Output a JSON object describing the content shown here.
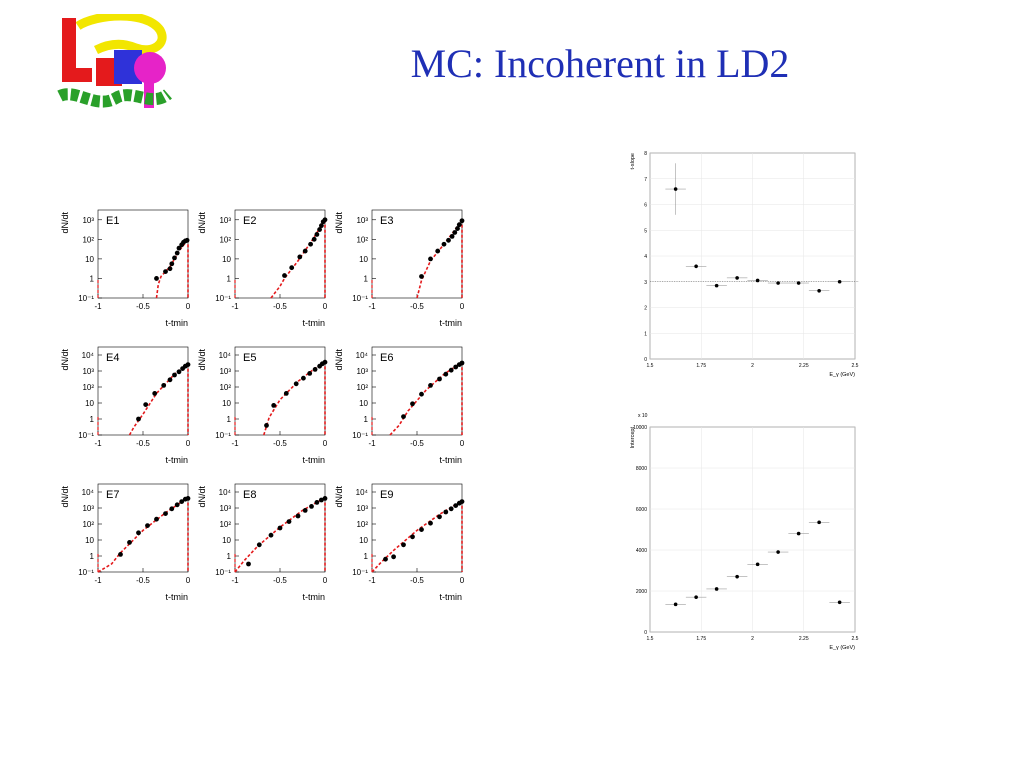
{
  "title": "MC: Incoherent in LD2",
  "colors": {
    "title": "#1f2fb5",
    "fit": "#e41a1c",
    "marker": "#000000"
  },
  "logo": {
    "text": "LEPS",
    "colors": [
      "#e41a1c",
      "#f2e600",
      "#2f32d9",
      "#2aa02a",
      "#e623c8"
    ]
  },
  "chart_data": [
    {
      "type": "scatter",
      "subplots": true,
      "layout": "3x3",
      "ylabel": "dN/dt",
      "xlabel": "t-tmin",
      "yscale": "log",
      "xlim": [
        -1,
        0
      ],
      "x_ticks": [
        "-1",
        "-0.5",
        "0"
      ],
      "fit_style": "red dashed",
      "panels": [
        {
          "label": "E1",
          "y_ticks": [
            "10⁻¹",
            "1",
            "10",
            "10²",
            "10³"
          ],
          "ylog": [
            -1,
            3.5
          ],
          "points": [
            [
              -0.35,
              0.0
            ],
            [
              -0.25,
              0.35
            ],
            [
              -0.2,
              0.5
            ],
            [
              -0.18,
              0.75
            ],
            [
              -0.15,
              1.05
            ],
            [
              -0.12,
              1.3
            ],
            [
              -0.1,
              1.55
            ],
            [
              -0.07,
              1.72
            ],
            [
              -0.05,
              1.85
            ],
            [
              -0.03,
              1.92
            ],
            [
              -0.01,
              1.95
            ]
          ],
          "fit": [
            [
              -0.35,
              -1.0
            ],
            [
              -0.33,
              -0.3
            ],
            [
              -0.3,
              0.1
            ],
            [
              -0.2,
              0.6
            ],
            [
              -0.1,
              1.4
            ],
            [
              0,
              2.0
            ]
          ]
        },
        {
          "label": "E2",
          "y_ticks": [
            "10⁻¹",
            "1",
            "10",
            "10²",
            "10³"
          ],
          "ylog": [
            -1,
            3.5
          ],
          "points": [
            [
              -0.45,
              0.15
            ],
            [
              -0.37,
              0.55
            ],
            [
              -0.28,
              1.1
            ],
            [
              -0.22,
              1.4
            ],
            [
              -0.16,
              1.75
            ],
            [
              -0.12,
              2.0
            ],
            [
              -0.09,
              2.25
            ],
            [
              -0.06,
              2.5
            ],
            [
              -0.04,
              2.7
            ],
            [
              -0.02,
              2.9
            ],
            [
              0,
              3.0
            ]
          ],
          "fit": [
            [
              -0.6,
              -1.0
            ],
            [
              -0.5,
              -0.4
            ],
            [
              -0.45,
              0.0
            ],
            [
              -0.3,
              0.9
            ],
            [
              -0.15,
              1.9
            ],
            [
              0,
              3.0
            ]
          ]
        },
        {
          "label": "E3",
          "y_ticks": [
            "10⁻¹",
            "1",
            "10",
            "10²",
            "10³"
          ],
          "ylog": [
            -1,
            3.5
          ],
          "points": [
            [
              -0.45,
              0.1
            ],
            [
              -0.35,
              1.0
            ],
            [
              -0.27,
              1.4
            ],
            [
              -0.2,
              1.75
            ],
            [
              -0.15,
              1.95
            ],
            [
              -0.11,
              2.15
            ],
            [
              -0.08,
              2.35
            ],
            [
              -0.05,
              2.55
            ],
            [
              -0.03,
              2.75
            ],
            [
              0,
              2.95
            ]
          ],
          "fit": [
            [
              -0.5,
              -1.0
            ],
            [
              -0.45,
              -0.1
            ],
            [
              -0.35,
              0.9
            ],
            [
              -0.2,
              1.75
            ],
            [
              -0.1,
              2.35
            ],
            [
              0,
              3.0
            ]
          ]
        },
        {
          "label": "E4",
          "y_ticks": [
            "10⁻¹",
            "1",
            "10",
            "10²",
            "10³",
            "10⁴"
          ],
          "ylog": [
            -1,
            4.5
          ],
          "points": [
            [
              -0.55,
              0.0
            ],
            [
              -0.47,
              0.9
            ],
            [
              -0.37,
              1.6
            ],
            [
              -0.27,
              2.1
            ],
            [
              -0.2,
              2.45
            ],
            [
              -0.15,
              2.75
            ],
            [
              -0.1,
              2.95
            ],
            [
              -0.06,
              3.15
            ],
            [
              -0.03,
              3.3
            ],
            [
              0,
              3.4
            ]
          ],
          "fit": [
            [
              -0.65,
              -1.0
            ],
            [
              -0.6,
              -0.5
            ],
            [
              -0.5,
              0.3
            ],
            [
              -0.35,
              1.6
            ],
            [
              -0.15,
              2.8
            ],
            [
              0,
              3.45
            ]
          ]
        },
        {
          "label": "E5",
          "y_ticks": [
            "10⁻¹",
            "1",
            "10",
            "10²",
            "10³",
            "10⁴"
          ],
          "ylog": [
            -1,
            4.5
          ],
          "points": [
            [
              -0.65,
              -0.4
            ],
            [
              -0.57,
              0.85
            ],
            [
              -0.43,
              1.6
            ],
            [
              -0.32,
              2.2
            ],
            [
              -0.24,
              2.55
            ],
            [
              -0.17,
              2.85
            ],
            [
              -0.11,
              3.1
            ],
            [
              -0.06,
              3.3
            ],
            [
              -0.03,
              3.45
            ],
            [
              0,
              3.55
            ]
          ],
          "fit": [
            [
              -0.68,
              -1.0
            ],
            [
              -0.62,
              0.1
            ],
            [
              -0.5,
              1.2
            ],
            [
              -0.3,
              2.35
            ],
            [
              -0.15,
              3.0
            ],
            [
              0,
              3.6
            ]
          ]
        },
        {
          "label": "E6",
          "y_ticks": [
            "10⁻¹",
            "1",
            "10",
            "10²",
            "10³",
            "10⁴"
          ],
          "ylog": [
            -1,
            4.5
          ],
          "points": [
            [
              -0.65,
              0.15
            ],
            [
              -0.55,
              0.95
            ],
            [
              -0.45,
              1.55
            ],
            [
              -0.35,
              2.1
            ],
            [
              -0.25,
              2.5
            ],
            [
              -0.18,
              2.8
            ],
            [
              -0.12,
              3.05
            ],
            [
              -0.07,
              3.25
            ],
            [
              -0.03,
              3.4
            ],
            [
              0,
              3.5
            ]
          ],
          "fit": [
            [
              -0.8,
              -1.0
            ],
            [
              -0.7,
              -0.4
            ],
            [
              -0.6,
              0.5
            ],
            [
              -0.4,
              1.8
            ],
            [
              -0.2,
              2.8
            ],
            [
              0,
              3.55
            ]
          ]
        },
        {
          "label": "E7",
          "y_ticks": [
            "10⁻¹",
            "1",
            "10",
            "10²",
            "10³",
            "10⁴"
          ],
          "ylog": [
            -1,
            4.5
          ],
          "points": [
            [
              -0.75,
              0.1
            ],
            [
              -0.65,
              0.85
            ],
            [
              -0.55,
              1.45
            ],
            [
              -0.45,
              1.9
            ],
            [
              -0.35,
              2.3
            ],
            [
              -0.25,
              2.65
            ],
            [
              -0.18,
              2.95
            ],
            [
              -0.12,
              3.2
            ],
            [
              -0.07,
              3.4
            ],
            [
              -0.03,
              3.55
            ],
            [
              0,
              3.6
            ]
          ],
          "fit": [
            [
              -1.0,
              -1.0
            ],
            [
              -0.85,
              -0.5
            ],
            [
              -0.75,
              0.2
            ],
            [
              -0.5,
              1.6
            ],
            [
              -0.25,
              2.7
            ],
            [
              0,
              3.65
            ]
          ]
        },
        {
          "label": "E8",
          "y_ticks": [
            "10⁻¹",
            "1",
            "10",
            "10²",
            "10³",
            "10⁴"
          ],
          "ylog": [
            -1,
            4.5
          ],
          "points": [
            [
              -0.85,
              -0.5
            ],
            [
              -0.73,
              0.7
            ],
            [
              -0.6,
              1.3
            ],
            [
              -0.5,
              1.75
            ],
            [
              -0.4,
              2.15
            ],
            [
              -0.3,
              2.5
            ],
            [
              -0.22,
              2.85
            ],
            [
              -0.15,
              3.1
            ],
            [
              -0.09,
              3.35
            ],
            [
              -0.04,
              3.5
            ],
            [
              0,
              3.6
            ]
          ],
          "fit": [
            [
              -1.0,
              -1.0
            ],
            [
              -0.9,
              -0.3
            ],
            [
              -0.75,
              0.6
            ],
            [
              -0.5,
              1.8
            ],
            [
              -0.25,
              2.85
            ],
            [
              0,
              3.65
            ]
          ]
        },
        {
          "label": "E9",
          "y_ticks": [
            "10⁻¹",
            "1",
            "10",
            "10²",
            "10³",
            "10⁴"
          ],
          "ylog": [
            -1,
            4.5
          ],
          "points": [
            [
              -0.85,
              -0.2
            ],
            [
              -0.76,
              -0.05
            ],
            [
              -0.65,
              0.7
            ],
            [
              -0.55,
              1.2
            ],
            [
              -0.45,
              1.65
            ],
            [
              -0.35,
              2.05
            ],
            [
              -0.25,
              2.45
            ],
            [
              -0.18,
              2.75
            ],
            [
              -0.12,
              2.95
            ],
            [
              -0.07,
              3.15
            ],
            [
              -0.03,
              3.3
            ],
            [
              0,
              3.4
            ]
          ],
          "fit": [
            [
              -1.0,
              -1.0
            ],
            [
              -0.9,
              -0.4
            ],
            [
              -0.75,
              0.4
            ],
            [
              -0.5,
              1.6
            ],
            [
              -0.25,
              2.6
            ],
            [
              0,
              3.45
            ]
          ]
        }
      ]
    },
    {
      "type": "scatter",
      "title": "",
      "ylabel": "t-slope",
      "xlabel": "E_γ (GeV)",
      "xlim": [
        1.5,
        2.5
      ],
      "ylim": [
        0,
        8
      ],
      "x_ticks": [
        "1.5",
        "1.75",
        "2",
        "2.25",
        "2.5"
      ],
      "y_ticks": [
        "0",
        "1",
        "2",
        "3",
        "4",
        "5",
        "6",
        "7",
        "8"
      ],
      "reference_line": 3.0,
      "x": [
        1.625,
        1.725,
        1.825,
        1.925,
        2.025,
        2.125,
        2.225,
        2.325,
        2.425
      ],
      "y": [
        6.6,
        3.6,
        2.85,
        3.15,
        3.05,
        2.95,
        2.95,
        2.65,
        3.0
      ],
      "yerr": [
        1.0,
        0.08,
        0.06,
        0.05,
        0.05,
        0.05,
        0.05,
        0.05,
        0.05
      ],
      "xerr": [
        0.05,
        0.05,
        0.05,
        0.05,
        0.05,
        0.05,
        0.05,
        0.05,
        0.05
      ]
    },
    {
      "type": "scatter",
      "title": "",
      "ylabel": "Intercept",
      "xlabel": "E_γ (GeV)",
      "y_multiplier": "x 10",
      "xlim": [
        1.5,
        2.5
      ],
      "ylim": [
        0,
        10000
      ],
      "x_ticks": [
        "1.5",
        "1.75",
        "2",
        "2.25",
        "2.5"
      ],
      "y_ticks": [
        "0",
        "2000",
        "4000",
        "6000",
        "8000",
        "10000"
      ],
      "x": [
        1.625,
        1.725,
        1.825,
        1.925,
        2.025,
        2.125,
        2.225,
        2.325,
        2.425
      ],
      "y": [
        1350,
        1700,
        2100,
        2700,
        3300,
        3900,
        4800,
        5350,
        1450
      ],
      "xerr": [
        0.05,
        0.05,
        0.05,
        0.05,
        0.05,
        0.05,
        0.05,
        0.05,
        0.05
      ]
    }
  ]
}
